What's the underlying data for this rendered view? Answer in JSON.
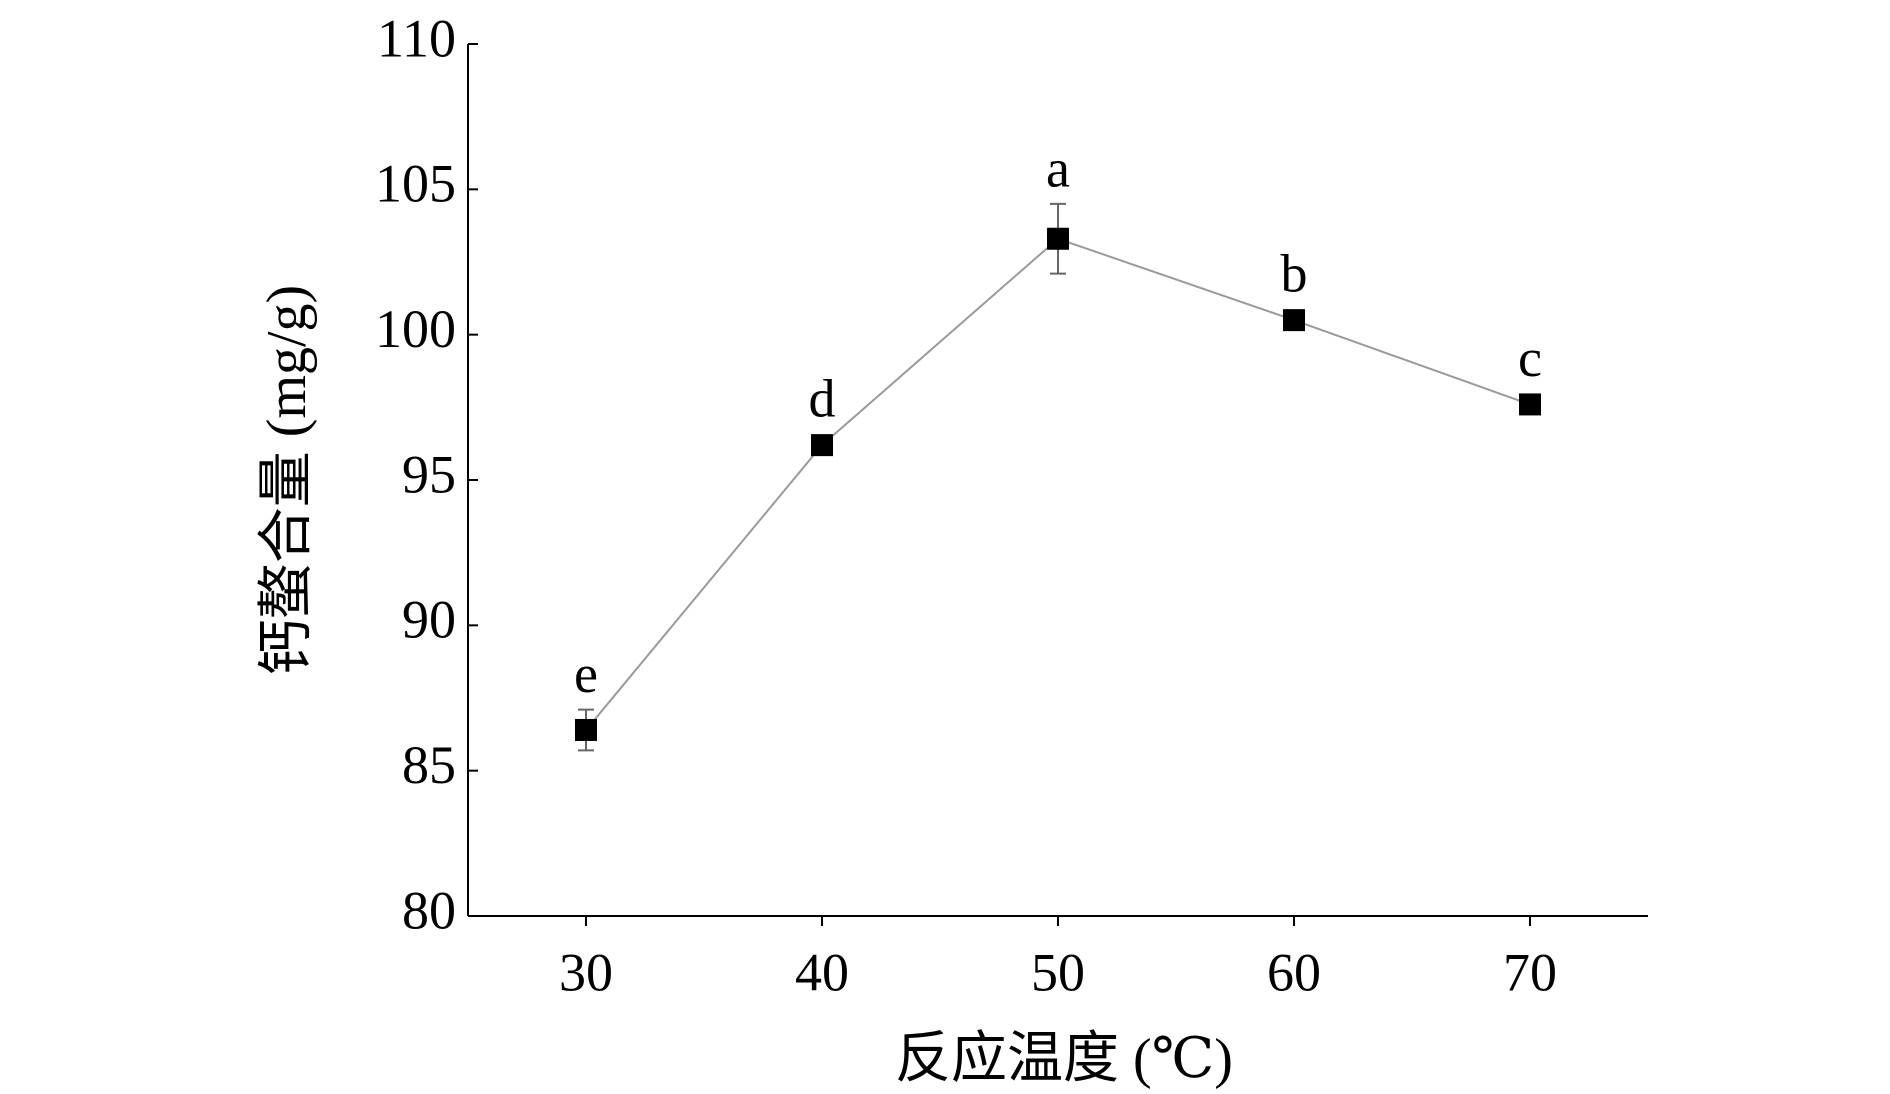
{
  "chart_data": {
    "type": "line",
    "xlabel": "反应温度 (℃)",
    "ylabel": "钙螯合量 (mg/g)",
    "x": [
      30,
      40,
      50,
      60,
      70
    ],
    "values": [
      86.4,
      96.2,
      103.3,
      100.5,
      97.6
    ],
    "errors": [
      0.7,
      0.2,
      1.2,
      0.2,
      0.2
    ],
    "point_labels": [
      "e",
      "d",
      "a",
      "b",
      "c"
    ],
    "line_color": "#9a9a9a",
    "marker_color": "#000000",
    "xlim": [
      25,
      75
    ],
    "xticks": [
      30,
      40,
      50,
      60,
      70
    ],
    "ylim": [
      80,
      110
    ],
    "yticks": [
      80,
      85,
      90,
      95,
      100,
      105,
      110
    ]
  }
}
